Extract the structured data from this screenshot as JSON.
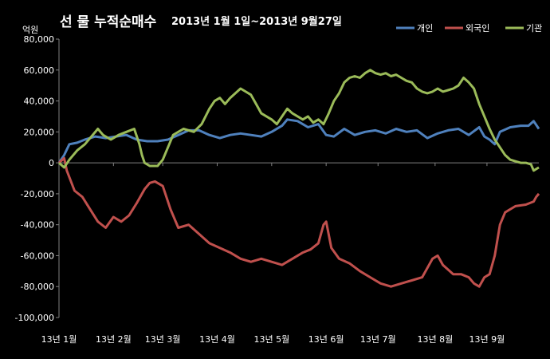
{
  "chart_data": {
    "type": "line",
    "title": "선 물 누적순매수",
    "subtitle": "2013년 1월 1일~2013년 9월27일",
    "ylabel": "억원",
    "ylim": [
      -100000,
      80000
    ],
    "yticks": [
      80000,
      60000,
      40000,
      20000,
      0,
      -20000,
      -40000,
      -60000,
      -80000,
      -100000
    ],
    "ytick_labels": [
      "80,000",
      "60,000",
      "40,000",
      "20,000",
      "0",
      "-20,000",
      "-40,000",
      "-60,000",
      "-80,000",
      "-100,000"
    ],
    "xlim": [
      0,
      185
    ],
    "x_ticks": [
      {
        "x": 0,
        "label": "13년 1월"
      },
      {
        "x": 21,
        "label": "13년 2월"
      },
      {
        "x": 40,
        "label": "13년 3월"
      },
      {
        "x": 61,
        "label": "13년 4월"
      },
      {
        "x": 82,
        "label": "13년 5월"
      },
      {
        "x": 103,
        "label": "13년 6월"
      },
      {
        "x": 123,
        "label": "13년 7월"
      },
      {
        "x": 145,
        "label": "13년 8월"
      },
      {
        "x": 165,
        "label": "13년 9월"
      }
    ],
    "grid": false,
    "legend_position": "top-right",
    "series": [
      {
        "name": "개인",
        "color": "#4f81bd",
        "points": [
          [
            0,
            0
          ],
          [
            2,
            5000
          ],
          [
            4,
            12000
          ],
          [
            7,
            13000
          ],
          [
            10,
            15000
          ],
          [
            14,
            17000
          ],
          [
            18,
            16000
          ],
          [
            22,
            17000
          ],
          [
            26,
            18000
          ],
          [
            30,
            15000
          ],
          [
            34,
            14000
          ],
          [
            38,
            14000
          ],
          [
            42,
            15000
          ],
          [
            46,
            18000
          ],
          [
            50,
            21000
          ],
          [
            54,
            21000
          ],
          [
            58,
            18000
          ],
          [
            62,
            16000
          ],
          [
            66,
            18000
          ],
          [
            70,
            19000
          ],
          [
            74,
            18000
          ],
          [
            78,
            17000
          ],
          [
            82,
            20000
          ],
          [
            86,
            24000
          ],
          [
            88,
            28000
          ],
          [
            92,
            27000
          ],
          [
            96,
            23000
          ],
          [
            100,
            25000
          ],
          [
            103,
            18000
          ],
          [
            106,
            17000
          ],
          [
            110,
            22000
          ],
          [
            114,
            18000
          ],
          [
            118,
            20000
          ],
          [
            122,
            21000
          ],
          [
            126,
            19000
          ],
          [
            130,
            22000
          ],
          [
            134,
            20000
          ],
          [
            138,
            21000
          ],
          [
            142,
            16000
          ],
          [
            146,
            19000
          ],
          [
            150,
            21000
          ],
          [
            154,
            22000
          ],
          [
            158,
            18000
          ],
          [
            162,
            23000
          ],
          [
            164,
            17000
          ],
          [
            166,
            15000
          ],
          [
            168,
            12000
          ],
          [
            170,
            20000
          ],
          [
            174,
            23000
          ],
          [
            178,
            24000
          ],
          [
            181,
            24000
          ],
          [
            183,
            27000
          ],
          [
            185,
            22000
          ]
        ]
      },
      {
        "name": "외국인",
        "color": "#c0504d",
        "points": [
          [
            0,
            0
          ],
          [
            2,
            3000
          ],
          [
            3,
            -5000
          ],
          [
            6,
            -18000
          ],
          [
            9,
            -22000
          ],
          [
            12,
            -30000
          ],
          [
            15,
            -38000
          ],
          [
            18,
            -42000
          ],
          [
            21,
            -35000
          ],
          [
            24,
            -38000
          ],
          [
            27,
            -34000
          ],
          [
            30,
            -26000
          ],
          [
            33,
            -17000
          ],
          [
            35,
            -13000
          ],
          [
            37,
            -12000
          ],
          [
            40,
            -15000
          ],
          [
            43,
            -30000
          ],
          [
            46,
            -42000
          ],
          [
            50,
            -40000
          ],
          [
            54,
            -46000
          ],
          [
            58,
            -52000
          ],
          [
            62,
            -55000
          ],
          [
            66,
            -58000
          ],
          [
            70,
            -62000
          ],
          [
            74,
            -64000
          ],
          [
            78,
            -62000
          ],
          [
            82,
            -64000
          ],
          [
            86,
            -66000
          ],
          [
            90,
            -62000
          ],
          [
            94,
            -58000
          ],
          [
            97,
            -56000
          ],
          [
            100,
            -52000
          ],
          [
            102,
            -40000
          ],
          [
            103,
            -38000
          ],
          [
            105,
            -55000
          ],
          [
            108,
            -62000
          ],
          [
            112,
            -65000
          ],
          [
            116,
            -70000
          ],
          [
            120,
            -74000
          ],
          [
            124,
            -78000
          ],
          [
            128,
            -80000
          ],
          [
            132,
            -78000
          ],
          [
            136,
            -76000
          ],
          [
            140,
            -74000
          ],
          [
            144,
            -62000
          ],
          [
            146,
            -60000
          ],
          [
            148,
            -66000
          ],
          [
            152,
            -72000
          ],
          [
            155,
            -72000
          ],
          [
            158,
            -74000
          ],
          [
            160,
            -78000
          ],
          [
            162,
            -80000
          ],
          [
            164,
            -74000
          ],
          [
            166,
            -72000
          ],
          [
            168,
            -60000
          ],
          [
            170,
            -40000
          ],
          [
            172,
            -32000
          ],
          [
            176,
            -28000
          ],
          [
            180,
            -27000
          ],
          [
            183,
            -25000
          ],
          [
            184,
            -22000
          ],
          [
            185,
            -20000
          ]
        ]
      },
      {
        "name": "기관",
        "color": "#9bbb59",
        "points": [
          [
            0,
            0
          ],
          [
            2,
            -3000
          ],
          [
            4,
            2000
          ],
          [
            7,
            8000
          ],
          [
            10,
            12000
          ],
          [
            13,
            18000
          ],
          [
            15,
            22000
          ],
          [
            17,
            18000
          ],
          [
            20,
            15000
          ],
          [
            23,
            18000
          ],
          [
            26,
            20000
          ],
          [
            29,
            22000
          ],
          [
            31,
            12000
          ],
          [
            32,
            5000
          ],
          [
            33,
            0
          ],
          [
            35,
            -2000
          ],
          [
            38,
            -2000
          ],
          [
            40,
            2000
          ],
          [
            42,
            10000
          ],
          [
            44,
            18000
          ],
          [
            46,
            20000
          ],
          [
            48,
            22000
          ],
          [
            52,
            20000
          ],
          [
            55,
            25000
          ],
          [
            58,
            35000
          ],
          [
            60,
            40000
          ],
          [
            62,
            42000
          ],
          [
            64,
            38000
          ],
          [
            66,
            42000
          ],
          [
            68,
            45000
          ],
          [
            70,
            48000
          ],
          [
            72,
            46000
          ],
          [
            74,
            44000
          ],
          [
            76,
            38000
          ],
          [
            78,
            32000
          ],
          [
            80,
            30000
          ],
          [
            82,
            28000
          ],
          [
            84,
            25000
          ],
          [
            86,
            30000
          ],
          [
            88,
            35000
          ],
          [
            90,
            32000
          ],
          [
            92,
            30000
          ],
          [
            94,
            28000
          ],
          [
            96,
            30000
          ],
          [
            98,
            26000
          ],
          [
            100,
            28000
          ],
          [
            102,
            25000
          ],
          [
            104,
            32000
          ],
          [
            106,
            40000
          ],
          [
            108,
            45000
          ],
          [
            110,
            52000
          ],
          [
            112,
            55000
          ],
          [
            114,
            56000
          ],
          [
            116,
            55000
          ],
          [
            118,
            58000
          ],
          [
            120,
            60000
          ],
          [
            122,
            58000
          ],
          [
            124,
            57000
          ],
          [
            126,
            58000
          ],
          [
            128,
            56000
          ],
          [
            130,
            57000
          ],
          [
            132,
            55000
          ],
          [
            134,
            53000
          ],
          [
            136,
            52000
          ],
          [
            138,
            48000
          ],
          [
            140,
            46000
          ],
          [
            142,
            45000
          ],
          [
            144,
            46000
          ],
          [
            146,
            48000
          ],
          [
            148,
            46000
          ],
          [
            150,
            47000
          ],
          [
            152,
            48000
          ],
          [
            154,
            50000
          ],
          [
            156,
            55000
          ],
          [
            158,
            52000
          ],
          [
            160,
            48000
          ],
          [
            162,
            38000
          ],
          [
            164,
            30000
          ],
          [
            166,
            22000
          ],
          [
            168,
            15000
          ],
          [
            170,
            10000
          ],
          [
            172,
            5000
          ],
          [
            174,
            2000
          ],
          [
            176,
            1000
          ],
          [
            178,
            0
          ],
          [
            180,
            0
          ],
          [
            182,
            -1000
          ],
          [
            183,
            -5000
          ],
          [
            185,
            -3000
          ]
        ]
      }
    ]
  }
}
